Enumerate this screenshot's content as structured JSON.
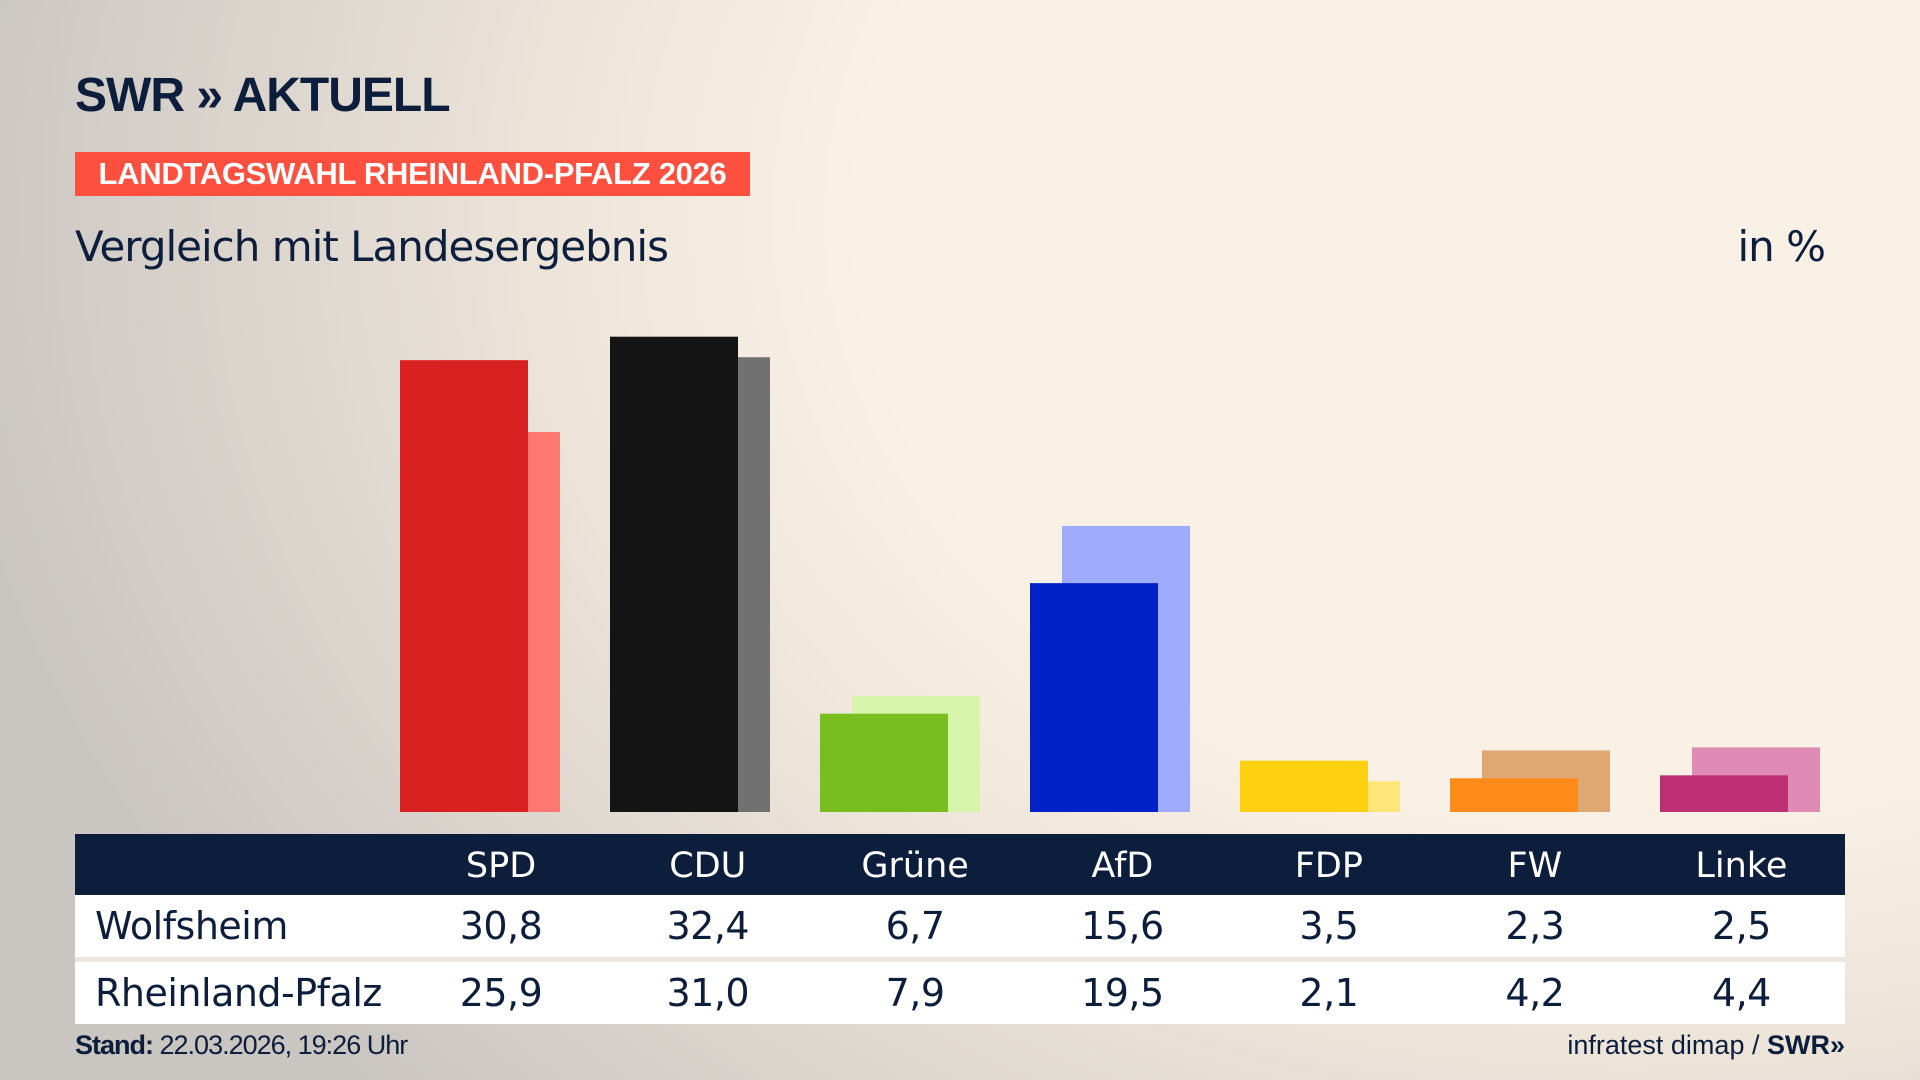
{
  "header": {
    "logo": "SWR » AKTUELL",
    "banner": "LANDTAGSWAHL RHEINLAND-PFALZ 2026",
    "subtitle": "Vergleich mit Landesergebnis",
    "unit": "in %"
  },
  "chart_data": {
    "type": "bar",
    "categories": [
      "SPD",
      "CDU",
      "Grüne",
      "AfD",
      "FDP",
      "FW",
      "Linke"
    ],
    "series": [
      {
        "name": "Wolfsheim",
        "values": [
          30.8,
          32.4,
          6.7,
          15.6,
          3.5,
          2.3,
          2.5
        ],
        "colors": [
          "#d7201f",
          "#141414",
          "#78be1e",
          "#0022c8",
          "#ffd010",
          "#ff8b1a",
          "#be3075"
        ]
      },
      {
        "name": "Rheinland-Pfalz",
        "values": [
          25.9,
          31.0,
          7.9,
          19.5,
          2.1,
          4.2,
          4.4
        ],
        "colors": [
          "#ff7870",
          "#717171",
          "#d6f5aa",
          "#9fabff",
          "#ffe57a",
          "#dfa774",
          "#df8ab5"
        ]
      }
    ],
    "value_labels": [
      [
        "30,8",
        "32,4",
        "6,7",
        "15,6",
        "3,5",
        "2,3",
        "2,5"
      ],
      [
        "25,9",
        "31,0",
        "7,9",
        "19,5",
        "2,1",
        "4,2",
        "4,4"
      ]
    ],
    "ylim": [
      0,
      35
    ]
  },
  "footer": {
    "stand_label": "Stand:",
    "stand_value": "22.03.2026, 19:26 Uhr",
    "source": "infratest dimap /",
    "source_logo": "SWR»"
  }
}
